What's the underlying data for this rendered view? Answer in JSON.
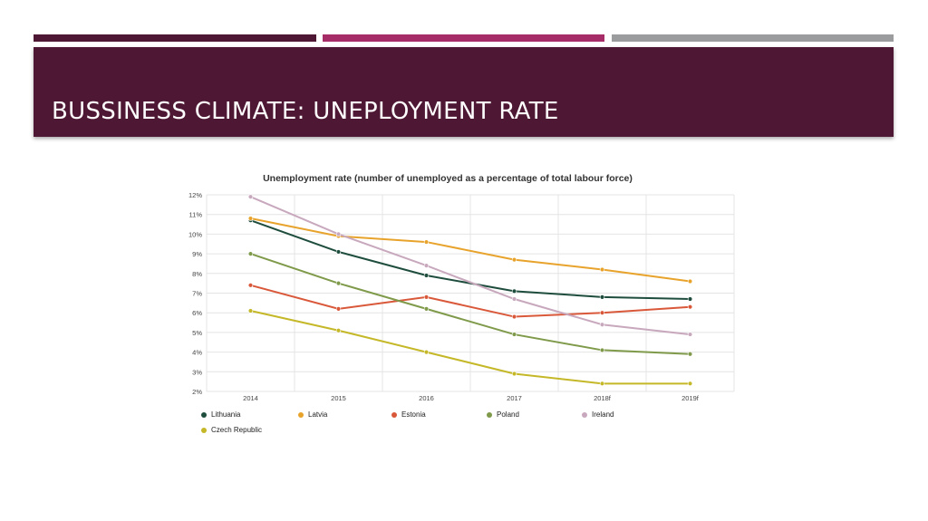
{
  "slide": {
    "title": "BUSSINESS CLIMATE: UNEPLOYMENT RATE",
    "band_color": "#4e1733",
    "stripes": [
      "#4e1733",
      "#a52c66",
      "#9a9c9e"
    ]
  },
  "chart_data": {
    "type": "line",
    "title": "Unemployment rate (number of unemployed as a percentage of total labour force)",
    "categories": [
      "2014",
      "2015",
      "2016",
      "2017",
      "2018f",
      "2019f"
    ],
    "ylim": [
      2,
      12
    ],
    "yticks": [
      "2%",
      "3%",
      "4%",
      "5%",
      "6%",
      "7%",
      "8%",
      "9%",
      "10%",
      "11%",
      "12%"
    ],
    "grid": true,
    "legend_position": "bottom",
    "series": [
      {
        "name": "Lithuania",
        "color": "#1e4d3d",
        "values": [
          10.7,
          9.1,
          7.9,
          7.1,
          6.8,
          6.7
        ]
      },
      {
        "name": "Latvia",
        "color": "#e8a32c",
        "values": [
          10.8,
          9.9,
          9.6,
          8.7,
          8.2,
          7.6
        ]
      },
      {
        "name": "Estonia",
        "color": "#d9583a",
        "values": [
          7.4,
          6.2,
          6.8,
          5.8,
          6.0,
          6.3
        ]
      },
      {
        "name": "Poland",
        "color": "#7f9a4a",
        "values": [
          9.0,
          7.5,
          6.2,
          4.9,
          4.1,
          3.9
        ]
      },
      {
        "name": "Ireland",
        "color": "#c8a8bd",
        "values": [
          11.9,
          10.0,
          8.4,
          6.7,
          5.4,
          4.9
        ]
      },
      {
        "name": "Czech Republic",
        "color": "#c5b828",
        "values": [
          6.1,
          5.1,
          4.0,
          2.9,
          2.4,
          2.4
        ]
      }
    ]
  }
}
